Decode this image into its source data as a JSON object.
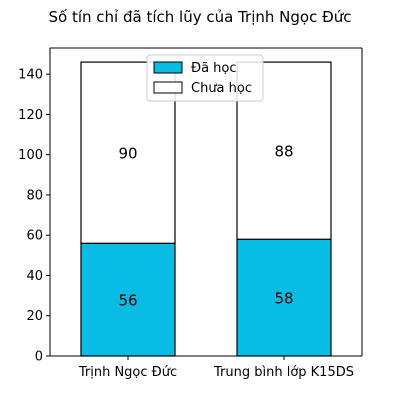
{
  "chart_data": {
    "type": "bar",
    "stacked": true,
    "title": "Số tín chỉ đã tích lũy của Trịnh Ngọc Đức",
    "xlabel": "",
    "ylabel": "",
    "categories": [
      "Trịnh Ngọc Đức",
      "Trung bình lớp K15DS"
    ],
    "series": [
      {
        "name": "Đã học",
        "values": [
          56,
          58
        ],
        "color": "#08bce3"
      },
      {
        "name": "Chưa học",
        "values": [
          90,
          88
        ],
        "color": "#ffffff"
      }
    ],
    "ylim": [
      0,
      153
    ],
    "yticks": [
      0,
      20,
      40,
      60,
      80,
      100,
      120,
      140
    ],
    "legend_position": "top-center",
    "grid": false
  }
}
